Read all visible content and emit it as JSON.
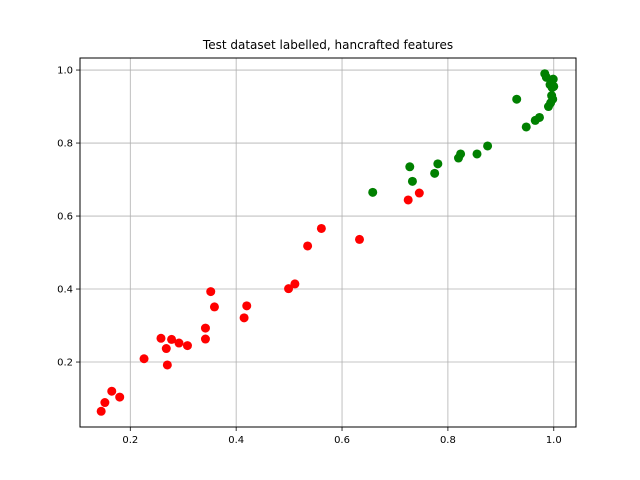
{
  "chart_data": {
    "type": "scatter",
    "title": "Test dataset labelled, hancrafted features",
    "xlabel": "",
    "ylabel": "",
    "xlim": [
      0.105,
      1.042
    ],
    "ylim": [
      0.022,
      1.033
    ],
    "xticks": [
      0.2,
      0.4,
      0.6,
      0.8,
      1.0
    ],
    "yticks": [
      0.2,
      0.4,
      0.6,
      0.8,
      1.0
    ],
    "xtick_labels": [
      "0.2",
      "0.4",
      "0.6",
      "0.8",
      "1.0"
    ],
    "ytick_labels": [
      "0.2",
      "0.4",
      "0.6",
      "0.8",
      "1.0"
    ],
    "grid": true,
    "series": [
      {
        "color": "#ff0000",
        "points": [
          [
            0.145,
            0.065
          ],
          [
            0.152,
            0.089
          ],
          [
            0.165,
            0.12
          ],
          [
            0.18,
            0.104
          ],
          [
            0.226,
            0.209
          ],
          [
            0.258,
            0.265
          ],
          [
            0.268,
            0.237
          ],
          [
            0.27,
            0.192
          ],
          [
            0.278,
            0.262
          ],
          [
            0.292,
            0.252
          ],
          [
            0.308,
            0.245
          ],
          [
            0.342,
            0.293
          ],
          [
            0.342,
            0.263
          ],
          [
            0.352,
            0.393
          ],
          [
            0.359,
            0.351
          ],
          [
            0.415,
            0.321
          ],
          [
            0.42,
            0.354
          ],
          [
            0.499,
            0.401
          ],
          [
            0.511,
            0.414
          ],
          [
            0.535,
            0.518
          ],
          [
            0.561,
            0.566
          ],
          [
            0.633,
            0.536
          ],
          [
            0.725,
            0.644
          ],
          [
            0.746,
            0.663
          ]
        ]
      },
      {
        "color": "#008000",
        "points": [
          [
            0.658,
            0.665
          ],
          [
            0.728,
            0.735
          ],
          [
            0.733,
            0.695
          ],
          [
            0.775,
            0.717
          ],
          [
            0.781,
            0.743
          ],
          [
            0.82,
            0.759
          ],
          [
            0.824,
            0.77
          ],
          [
            0.855,
            0.77
          ],
          [
            0.875,
            0.792
          ],
          [
            0.93,
            0.92
          ],
          [
            0.948,
            0.844
          ],
          [
            0.965,
            0.862
          ],
          [
            0.973,
            0.87
          ],
          [
            0.983,
            0.99
          ],
          [
            0.986,
            0.98
          ],
          [
            0.99,
            0.9
          ],
          [
            0.993,
            0.96
          ],
          [
            0.994,
            0.91
          ],
          [
            0.996,
            0.93
          ],
          [
            0.997,
            0.952
          ],
          [
            0.998,
            0.92
          ],
          [
            0.999,
            0.975
          ],
          [
            1.0,
            0.955
          ]
        ]
      }
    ]
  }
}
